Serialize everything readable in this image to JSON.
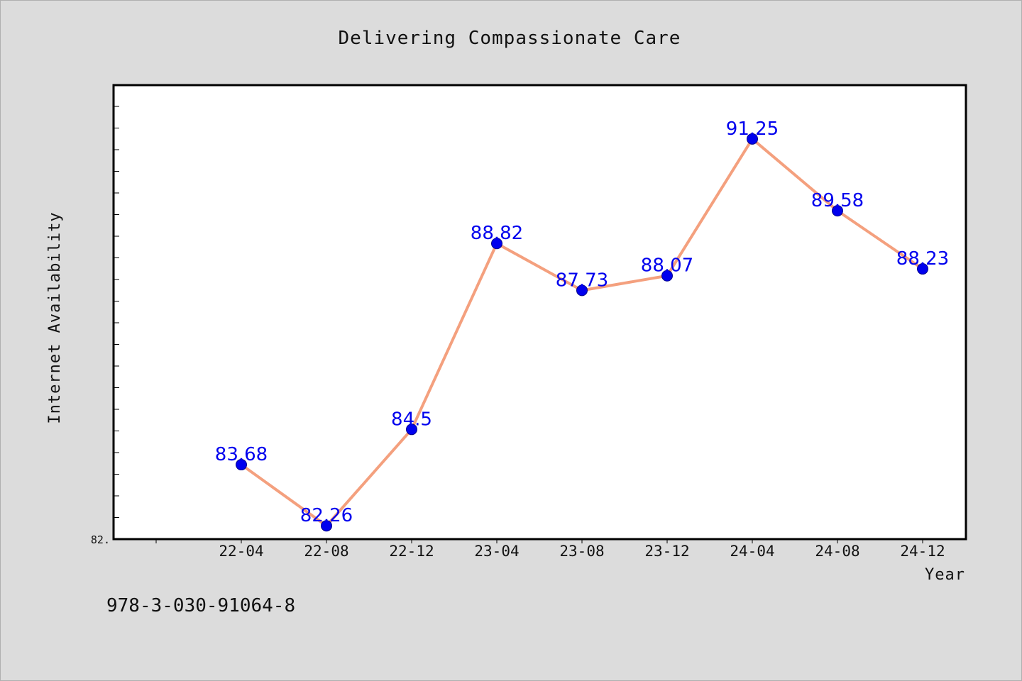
{
  "chart_data": {
    "type": "line",
    "title": "Delivering Compassionate Care",
    "xlabel": "Year",
    "ylabel": "Internet Availability",
    "categories": [
      "22-04",
      "22-08",
      "22-12",
      "23-04",
      "23-08",
      "23-12",
      "24-04",
      "24-08",
      "24-12"
    ],
    "values": [
      83.68,
      82.26,
      84.5,
      88.82,
      87.73,
      88.07,
      91.25,
      89.58,
      88.23
    ],
    "data_labels": [
      "83.68",
      "82.26",
      "84.5",
      "88.82",
      "87.73",
      "88.07",
      "91.25",
      "89.58",
      "88.23"
    ],
    "ylim": [
      81.95,
      92.5
    ],
    "y_tick_label": "82.",
    "grid": false,
    "legend": "none",
    "colors": {
      "line": "#f4a07e",
      "marker": "#0000ee",
      "label": "#0000ee",
      "background": "#dcdcdc",
      "plot_background": "#ffffff"
    }
  },
  "footer": {
    "isbn": "978-3-030-91064-8"
  }
}
